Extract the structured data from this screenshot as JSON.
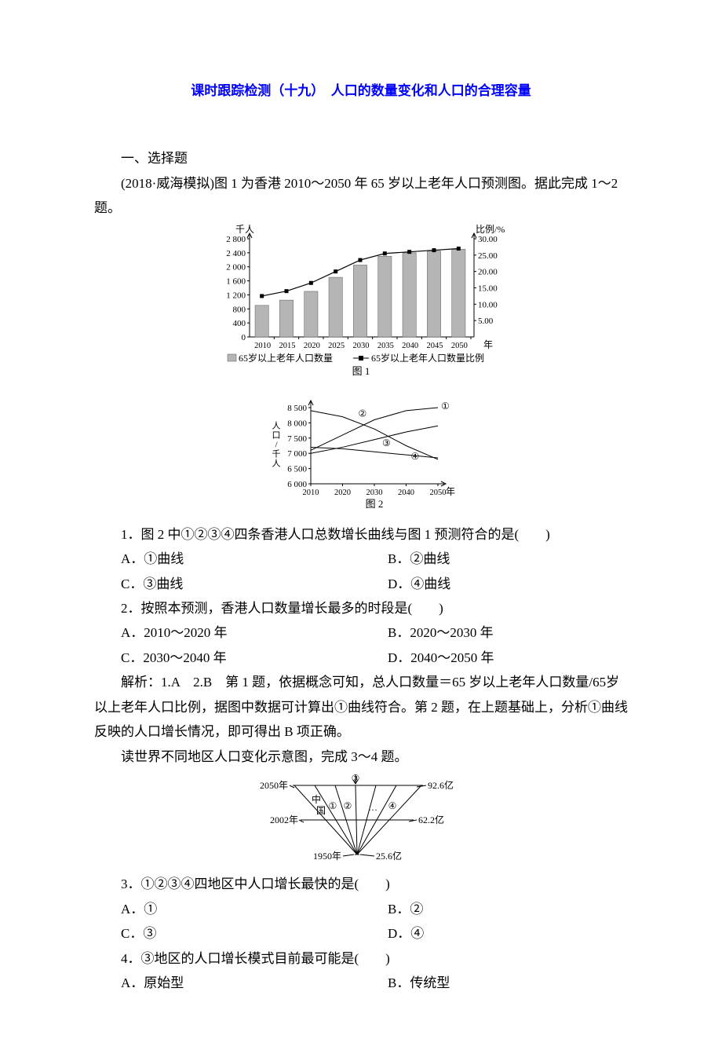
{
  "title": "课时跟踪检测（十九）　人口的数量变化和人口的合理容量",
  "section1": "一、选择题",
  "intro1": "(2018·威海模拟)图 1 为香港 2010～2050 年 65 岁以上老年人口预测图。据此完成 1～2 题。",
  "chart1": {
    "y1_label": "千人",
    "y2_label": "比例/%",
    "x_label": "年",
    "caption": "图 1",
    "y1_ticks": [
      "0",
      "400",
      "800",
      "1 200",
      "1 600",
      "2 000",
      "2 400",
      "2 800"
    ],
    "y2_ticks": [
      "",
      "5.00",
      "10.00",
      "15.00",
      "20.00",
      "25.00",
      "30.00"
    ],
    "x_ticks": [
      "2010",
      "2015",
      "2020",
      "2025",
      "2030",
      "2035",
      "2040",
      "2045",
      "2050"
    ],
    "bar_values": [
      900,
      1050,
      1300,
      1700,
      2050,
      2300,
      2400,
      2450,
      2500
    ],
    "line_values": [
      12.5,
      14,
      16.5,
      20,
      23.5,
      25.5,
      26,
      26.5,
      27
    ],
    "legend_bar": "65岁以上老年人口数量",
    "legend_line": "65岁以上老年人口数量比例",
    "bar_color": "#b5b5b5",
    "line_color": "#000000",
    "axis_color": "#000000",
    "y1_max": 2800,
    "y2_max": 30
  },
  "chart2": {
    "y_label": "人口/千人",
    "x_label": "年",
    "caption": "图 2",
    "y_ticks": [
      "6 000",
      "6 500",
      "7 000",
      "7 500",
      "8 000",
      "8 500"
    ],
    "x_ticks": [
      "2010",
      "2020",
      "2030",
      "2040",
      "2050"
    ],
    "labels": {
      "l1": "①",
      "l2": "②",
      "l3": "③",
      "l4": "④"
    },
    "axis_color": "#000000"
  },
  "q1": {
    "stem": "1．图 2 中①②③④四条香港人口总数增长曲线与图 1 预测符合的是(　　)",
    "A": "A．①曲线",
    "B": "B．②曲线",
    "C": "C．③曲线",
    "D": "D．④曲线"
  },
  "q2": {
    "stem": "2．按照本预测，香港人口数量增长最多的时段是(　　)",
    "A": "A．2010～2020 年",
    "B": "B．2020～2030 年",
    "C": "C．2030～2040 年",
    "D": "D．2040～2050 年"
  },
  "expl1": "解析：1.A　2.B　第 1 题，依据概念可知，总人口数量＝65 岁以上老年人口数量/65岁以上老年人口比例，据图中数据可计算出①曲线符合。第 2 题，在上题基础上，分析①曲线反映的人口增长情况，即可得出 B 项正确。",
  "intro2": "读世界不同地区人口变化示意图，完成 3～4 题。",
  "chart3": {
    "labels": {
      "y2050": "2050年",
      "y2002": "2002年",
      "y1950": "1950年",
      "cn": "中",
      "guo": "国",
      "l1": "①",
      "l2": "②",
      "l3": "③",
      "l4": "④",
      "dots": "…",
      "p926": "92.6亿",
      "p622": "62.2亿",
      "p256": "25.6亿"
    },
    "axis_color": "#000000"
  },
  "q3": {
    "stem": "3．①②③④四地区中人口增长最快的是(　　)",
    "A": "A．①",
    "B": "B．②",
    "C": "C．③",
    "D": "D．④"
  },
  "q4": {
    "stem": "4．③地区的人口增长模式目前最可能是(　　)",
    "A": "A．原始型",
    "B": "B．传统型"
  }
}
